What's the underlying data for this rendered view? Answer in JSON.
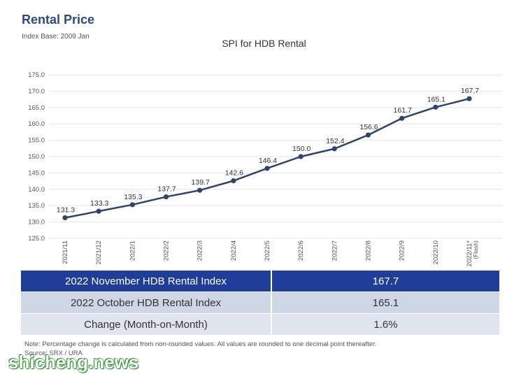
{
  "header": {
    "title": "Rental Price",
    "subtitle": "Index Base: 2009 Jan"
  },
  "chart_data": {
    "type": "line",
    "title": "SPI for HDB Rental",
    "xlabel": "",
    "ylabel": "",
    "categories": [
      "2021/11",
      "2021/12",
      "2022/1",
      "2022/2",
      "2022/3",
      "2022/4",
      "2022/5",
      "2022/6",
      "2022/7",
      "2022/8",
      "2022/9",
      "2022/10",
      "2022/11*"
    ],
    "category_sublabels": [
      "",
      "",
      "",
      "",
      "",
      "",
      "",
      "",
      "",
      "",
      "",
      "",
      "(Flash)"
    ],
    "series": [
      {
        "values": [
          131.3,
          133.3,
          135.3,
          137.7,
          139.7,
          142.6,
          146.4,
          150.0,
          152.4,
          156.6,
          161.7,
          165.1,
          167.7
        ]
      }
    ],
    "data_labels": [
      "131.3",
      "133.3",
      "135.3",
      "137.7",
      "139.7",
      "142.6",
      "146.4",
      "150.0",
      "152.4",
      "156.6",
      "161.7",
      "165.1",
      "167.7"
    ],
    "yticks": [
      "125.0",
      "130.0",
      "135.0",
      "140.0",
      "145.0",
      "150.0",
      "155.0",
      "160.0",
      "165.0",
      "170.0",
      "175.0"
    ],
    "ylim": [
      125,
      175
    ],
    "grid": true,
    "legend": "none",
    "colors": {
      "line": "#2f4468",
      "grid": "#e3e6ea",
      "axis": "#555555"
    }
  },
  "summary": {
    "rows": [
      {
        "label": "2022 November HDB Rental Index",
        "value": "167.7"
      },
      {
        "label": "2022 October HDB Rental Index",
        "value": "165.1"
      },
      {
        "label": "Change (Month-on-Month)",
        "value": "1.6%"
      }
    ],
    "colors": {
      "highlight": "#1f3d99",
      "row_b": "#cfd6e6",
      "row_c": "#dfe4ef"
    }
  },
  "footer": {
    "note": "Note: Percentage change is calculated from non-rounded values.  All values are rounded to one decimal point thereafter.",
    "source": "Source: SRX / URA"
  },
  "watermark": {
    "text": "shicheng.news"
  }
}
